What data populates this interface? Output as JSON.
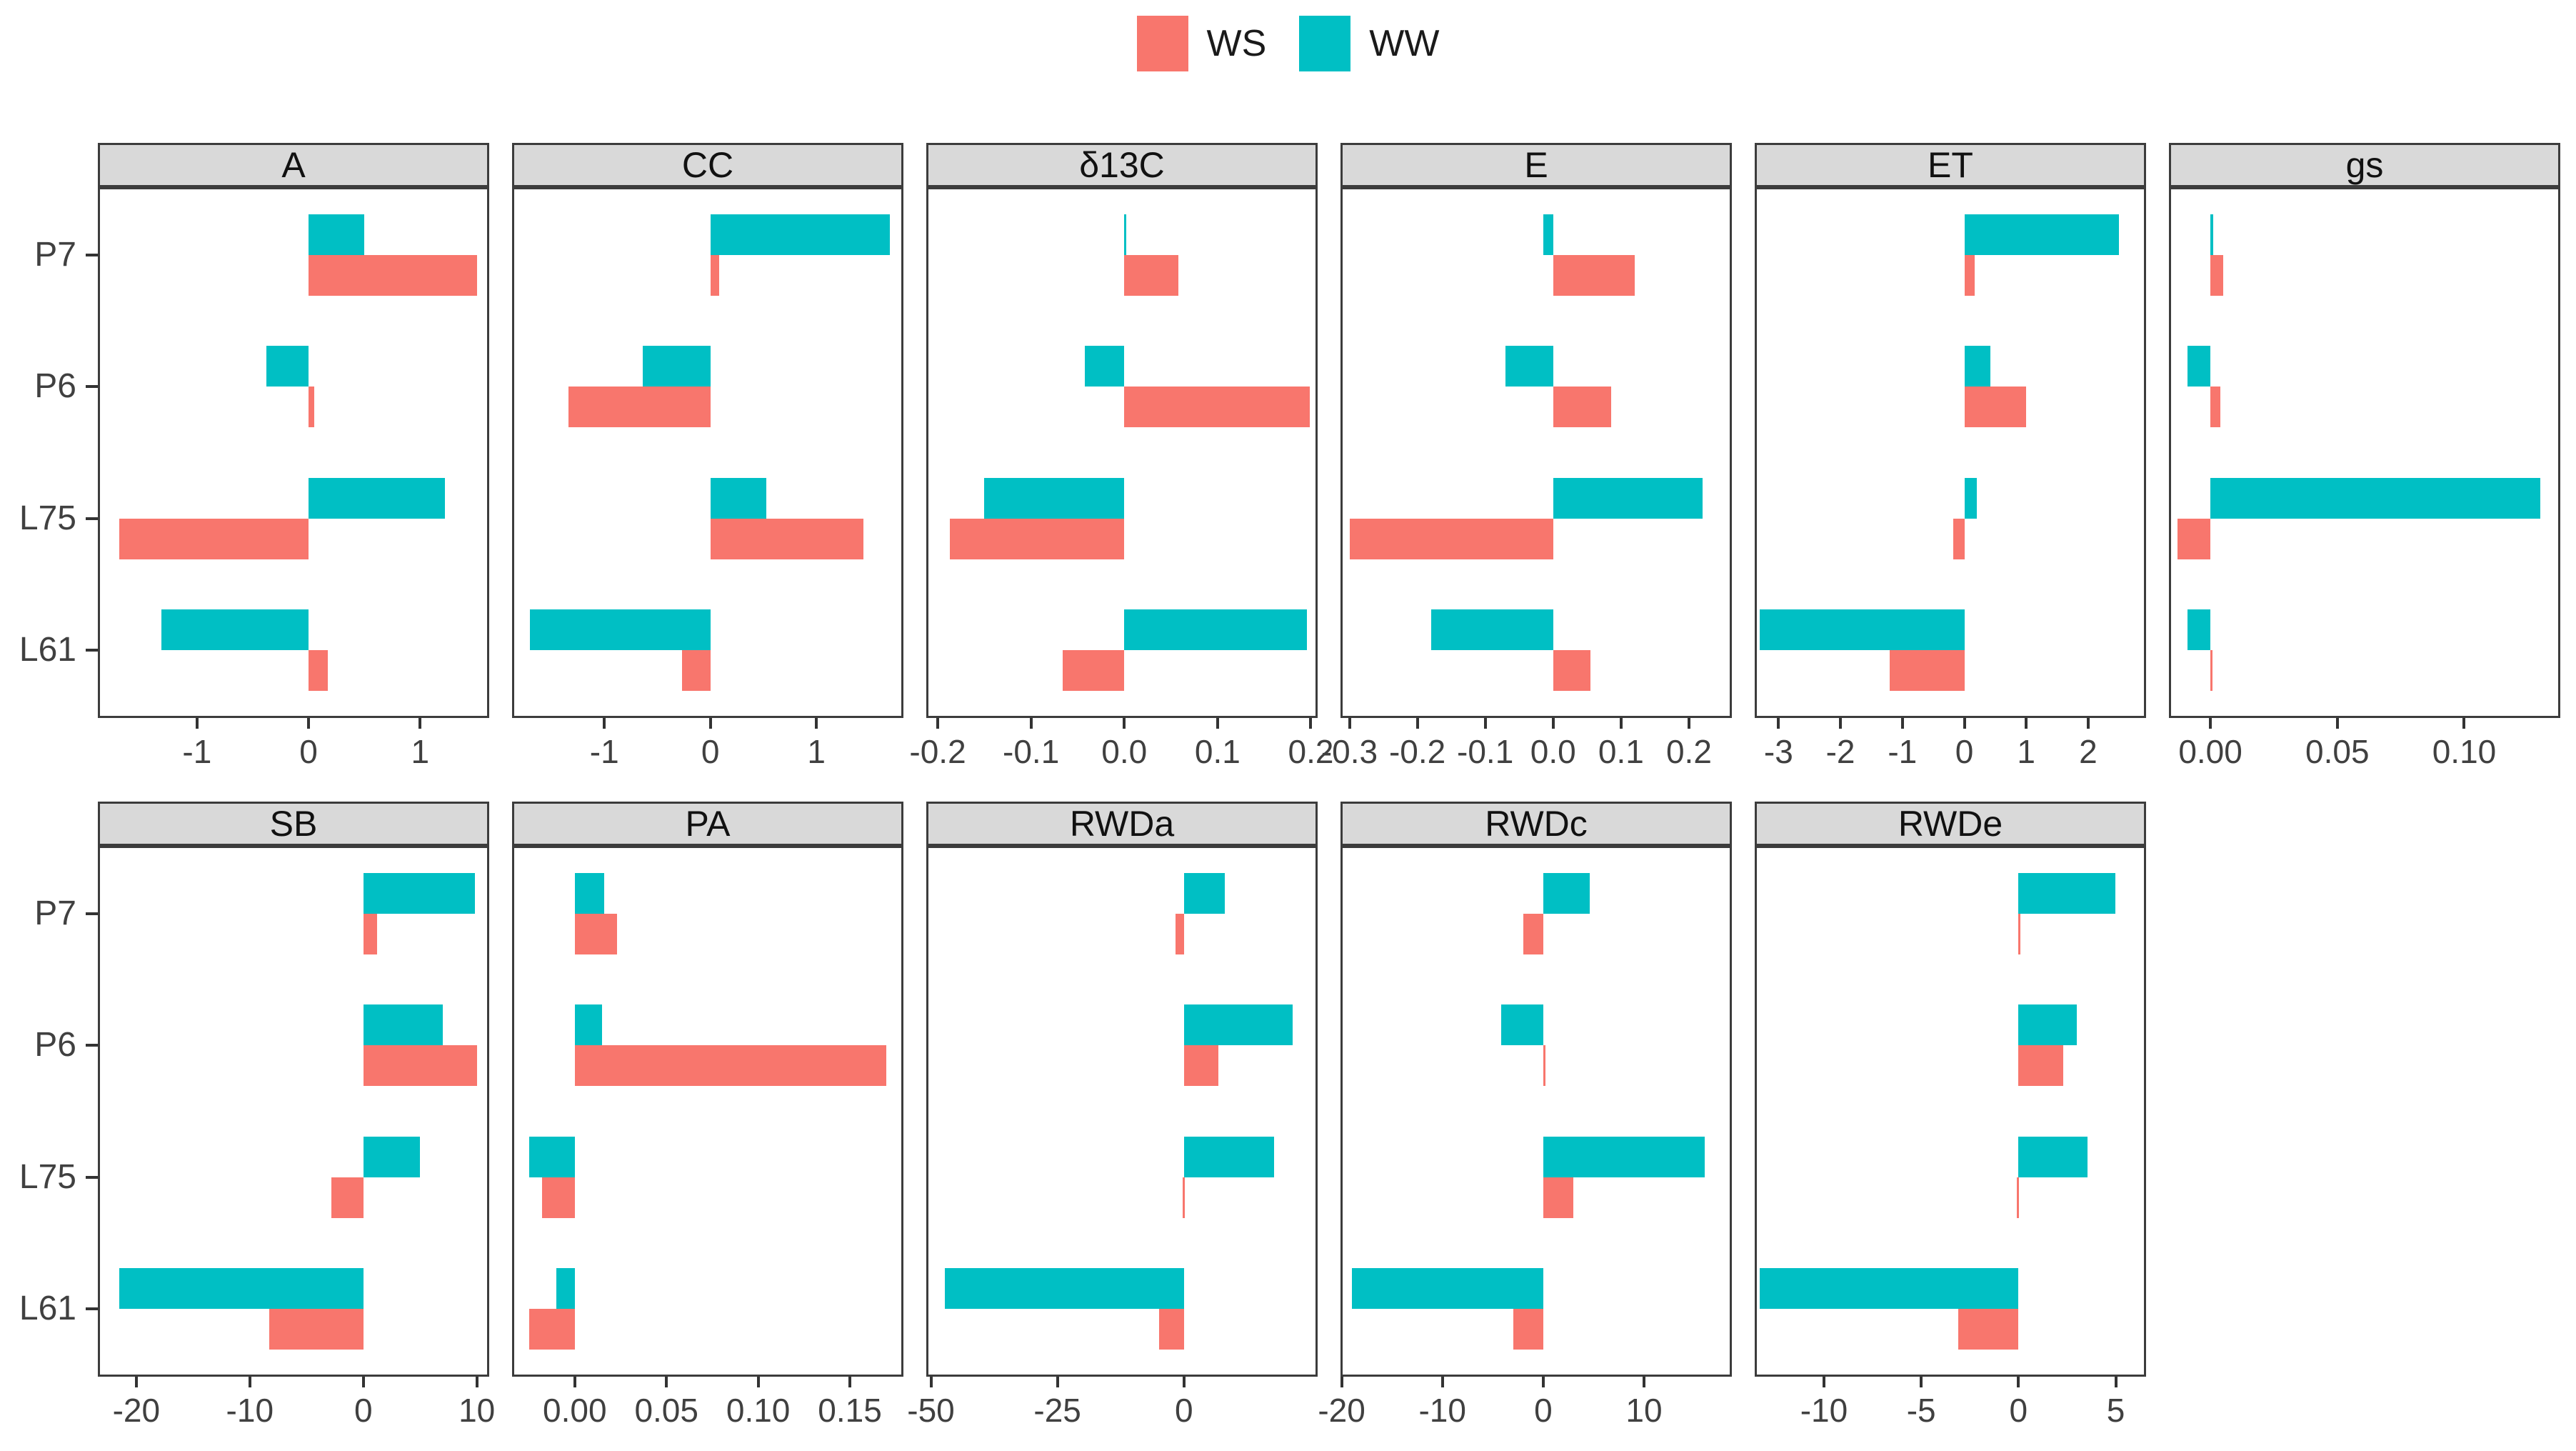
{
  "legend": {
    "items": [
      {
        "label": "WS",
        "color": "#F8766D"
      },
      {
        "label": "WW",
        "color": "#00BFC4"
      }
    ]
  },
  "chart_data": {
    "type": "bar",
    "orientation": "horizontal",
    "title": "",
    "xlabel": "",
    "ylabel": "",
    "grid": "off",
    "legend_position": "top",
    "categories": [
      "P7",
      "P6",
      "L75",
      "L61"
    ],
    "series_names": [
      "WS",
      "WW"
    ],
    "colors": {
      "WS": "#F8766D",
      "WW": "#00BFC4"
    },
    "strip_background": "#d9d9d9",
    "border_color": "#3c3c3c",
    "facets": [
      {
        "title": "A",
        "row": 1,
        "col": 0,
        "xlim": [
          -1.87,
          1.6
        ],
        "ticks": [
          -1,
          0,
          1
        ],
        "tick_labels": [
          "-1",
          "0",
          "1"
        ],
        "WW": [
          0.5,
          -0.38,
          1.22,
          -1.32
        ],
        "WS": [
          1.51,
          0.05,
          -1.7,
          0.17
        ]
      },
      {
        "title": "CC",
        "row": 1,
        "col": 1,
        "xlim": [
          -1.85,
          1.8
        ],
        "ticks": [
          -1,
          0,
          1
        ],
        "tick_labels": [
          "-1",
          "0",
          "1"
        ],
        "WW": [
          1.69,
          -0.64,
          0.53,
          -1.7
        ],
        "WS": [
          0.08,
          -1.34,
          1.44,
          -0.27
        ]
      },
      {
        "title": "δ13C",
        "row": 1,
        "col": 2,
        "xlim": [
          -0.21,
          0.205
        ],
        "ticks": [
          -0.2,
          -0.1,
          0.0,
          0.1,
          0.2
        ],
        "tick_labels": [
          "-0.2",
          "-0.1",
          "0.0",
          "0.1",
          "0.2"
        ],
        "WW": [
          0.002,
          -0.042,
          -0.15,
          0.196
        ],
        "WS": [
          0.058,
          0.199,
          -0.187,
          -0.066
        ]
      },
      {
        "title": "E",
        "row": 1,
        "col": 3,
        "xlim": [
          -0.31,
          0.26
        ],
        "ticks": [
          -0.3,
          -0.2,
          -0.1,
          0.0,
          0.1,
          0.2
        ],
        "tick_labels": [
          "-0.3",
          "-0.2",
          "-0.1",
          "0.0",
          "0.1",
          "0.2"
        ],
        "WW": [
          -0.015,
          -0.07,
          0.22,
          -0.18
        ],
        "WS": [
          0.12,
          0.085,
          -0.3,
          0.055
        ]
      },
      {
        "title": "ET",
        "row": 1,
        "col": 4,
        "xlim": [
          -3.35,
          2.9
        ],
        "ticks": [
          -3,
          -2,
          -1,
          0,
          1,
          2
        ],
        "tick_labels": [
          "-3",
          "-2",
          "-1",
          "0",
          "1",
          "2"
        ],
        "WW": [
          2.5,
          0.42,
          0.2,
          -3.3
        ],
        "WS": [
          0.17,
          1.0,
          -0.18,
          -1.2
        ]
      },
      {
        "title": "gs",
        "row": 1,
        "col": 5,
        "xlim": [
          -0.0155,
          0.137
        ],
        "ticks": [
          0.0,
          0.05,
          0.1
        ],
        "tick_labels": [
          "0.00",
          "0.05",
          "0.10"
        ],
        "WW": [
          0.001,
          -0.009,
          0.13,
          -0.009
        ],
        "WS": [
          0.005,
          0.004,
          -0.013,
          0.0005
        ]
      },
      {
        "title": "SB",
        "row": 2,
        "col": 0,
        "xlim": [
          -23.2,
          10.9
        ],
        "ticks": [
          -20,
          -10,
          0,
          10
        ],
        "tick_labels": [
          "-20",
          "-10",
          "0",
          "10"
        ],
        "WW": [
          9.8,
          7.0,
          5.0,
          -21.5
        ],
        "WS": [
          1.2,
          10.0,
          -2.8,
          -8.3
        ]
      },
      {
        "title": "PA",
        "row": 2,
        "col": 1,
        "xlim": [
          -0.033,
          0.178
        ],
        "ticks": [
          0.0,
          0.05,
          0.1,
          0.15
        ],
        "tick_labels": [
          "0.00",
          "0.05",
          "0.10",
          "0.15"
        ],
        "WW": [
          0.016,
          0.015,
          -0.025,
          -0.01
        ],
        "WS": [
          0.023,
          0.17,
          -0.018,
          -0.025
        ]
      },
      {
        "title": "RWDa",
        "row": 2,
        "col": 2,
        "xlim": [
          -50.5,
          26
        ],
        "ticks": [
          -50,
          -25,
          0
        ],
        "tick_labels": [
          "-50",
          "-25",
          "0"
        ],
        "WW": [
          8.1,
          21.5,
          17.8,
          -47.2
        ],
        "WS": [
          -1.6,
          6.8,
          -0.3,
          -4.9
        ]
      },
      {
        "title": "RWDc",
        "row": 2,
        "col": 3,
        "xlim": [
          -19.9,
          18.5
        ],
        "ticks": [
          -20,
          -10,
          0,
          10
        ],
        "tick_labels": [
          "-20",
          "-10",
          "0",
          "10"
        ],
        "WW": [
          4.6,
          -4.2,
          16.0,
          -19.0
        ],
        "WS": [
          -2.0,
          0.15,
          3.0,
          -3.0
        ]
      },
      {
        "title": "RWDe",
        "row": 2,
        "col": 4,
        "xlim": [
          -13.45,
          6.45
        ],
        "ticks": [
          -10,
          -5,
          0,
          5
        ],
        "tick_labels": [
          "-10",
          "-5",
          "0",
          "5"
        ],
        "WW": [
          5.0,
          3.0,
          3.55,
          -13.3
        ],
        "WS": [
          0.1,
          2.3,
          -0.1,
          -3.1
        ]
      }
    ]
  }
}
